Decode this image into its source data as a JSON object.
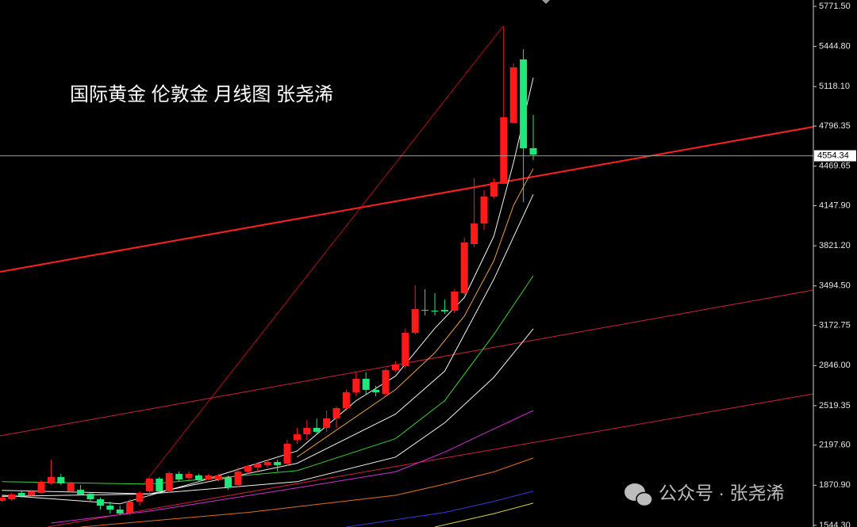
{
  "chart_data": {
    "type": "candlestick",
    "title": "国际黄金 伦敦金  月线图 张尧浠",
    "watermark": "公众号 · 张尧浠",
    "up_color": "#ff1a1a",
    "down_color": "#1ee87a",
    "ylim": [
      1531,
      5823
    ],
    "yticks": [
      {
        "value": 1544.3,
        "label": "1544.30"
      },
      {
        "value": 1870.9,
        "label": "1870.90"
      },
      {
        "value": 2197.6,
        "label": "2197.60"
      },
      {
        "value": 2519.35,
        "label": "2519.35"
      },
      {
        "value": 2846.0,
        "label": "2846.00"
      },
      {
        "value": 3172.75,
        "label": "3172.75"
      },
      {
        "value": 3494.5,
        "label": "3494.50"
      },
      {
        "value": 3821.2,
        "label": "3821.20"
      },
      {
        "value": 4147.9,
        "label": "4147.90"
      },
      {
        "value": 4469.65,
        "label": "4469.65"
      },
      {
        "value": 4796.35,
        "label": "4796.35"
      },
      {
        "value": 5118.1,
        "label": "5118.10"
      },
      {
        "value": 5444.8,
        "label": "5444.80"
      },
      {
        "value": 5771.5,
        "label": "5771.50"
      }
    ],
    "last_price": 4554.34,
    "ohlc": {
      "open": [
        1744,
        1757,
        1809,
        1789,
        1809,
        1886,
        1938,
        1822,
        1834,
        1802,
        1757,
        1705,
        1673,
        1641,
        1738,
        1822,
        1925,
        1822,
        1964,
        1931,
        1951,
        1918,
        1918,
        1931,
        1873,
        1983,
        2015,
        2035,
        2060,
        2047,
        2241,
        2286,
        2338,
        2338,
        2415,
        2499,
        2628,
        2738,
        2648,
        2615,
        2809,
        2841,
        3112,
        3299,
        3293,
        3299,
        3293,
        3435,
        3835,
        4003,
        4222,
        4326,
        4823,
        5339,
        4616
      ],
      "high": [
        1783,
        1809,
        1822,
        1834,
        1912,
        2080,
        1964,
        1899,
        1873,
        1809,
        1770,
        1738,
        1705,
        1757,
        1822,
        1931,
        1938,
        1983,
        1983,
        1983,
        1964,
        1964,
        1964,
        1951,
        2015,
        2035,
        2060,
        2080,
        2080,
        2241,
        2338,
        2402,
        2415,
        2480,
        2512,
        2648,
        2790,
        2790,
        2680,
        2822,
        2880,
        3145,
        3500,
        3467,
        3435,
        3383,
        3467,
        3887,
        4371,
        4274,
        4371,
        5610,
        5307,
        5423,
        4887
      ],
      "low": [
        1738,
        1744,
        1770,
        1783,
        1802,
        1873,
        1873,
        1809,
        1789,
        1744,
        1673,
        1641,
        1628,
        1628,
        1705,
        1809,
        1809,
        1809,
        1899,
        1912,
        1899,
        1912,
        1899,
        1834,
        1854,
        1964,
        1983,
        2015,
        1983,
        2028,
        2209,
        2241,
        2286,
        2306,
        2338,
        2480,
        2596,
        2615,
        2596,
        2596,
        2790,
        2822,
        3099,
        3254,
        3254,
        3267,
        3274,
        3422,
        3809,
        3951,
        4209,
        4326,
        4823,
        4177,
        4519
      ],
      "close": [
        1770,
        1796,
        1783,
        1822,
        1899,
        1938,
        1886,
        1886,
        1796,
        1757,
        1705,
        1673,
        1641,
        1738,
        1809,
        1925,
        1822,
        1970,
        1918,
        1964,
        1912,
        1951,
        1951,
        1854,
        1983,
        2028,
        2047,
        2060,
        2035,
        2209,
        2286,
        2338,
        2306,
        2415,
        2499,
        2628,
        2738,
        2648,
        2628,
        2809,
        2854,
        3112,
        3306,
        3293,
        3287,
        3287,
        3448,
        3848,
        4003,
        4222,
        4339,
        4868,
        5274,
        4616,
        4564
      ]
    },
    "overlays": [
      {
        "color": "#f2f2f2",
        "x": [
          0,
          12,
          20,
          30,
          36,
          40,
          44,
          47,
          50,
          52,
          54
        ],
        "values": [
          1790,
          1720,
          1900,
          2150,
          2560,
          2760,
          3150,
          3400,
          3900,
          4500,
          5190
        ]
      },
      {
        "color": "#e8a040",
        "x": [
          30,
          40,
          44,
          47,
          50,
          52,
          54
        ],
        "values": [
          2100,
          2650,
          2950,
          3250,
          3700,
          4150,
          4450
        ]
      },
      {
        "color": "#f2f2f2",
        "x": [
          0,
          15,
          30,
          40,
          45,
          50,
          54
        ],
        "values": [
          1830,
          1800,
          2050,
          2450,
          2800,
          3550,
          4240
        ]
      },
      {
        "color": "#3ad13a",
        "x": [
          0,
          15,
          30,
          40,
          45,
          50,
          54
        ],
        "values": [
          1900,
          1880,
          1990,
          2250,
          2560,
          3100,
          3577
        ]
      },
      {
        "color": "#f2f2f2",
        "x": [
          0,
          15,
          30,
          40,
          45,
          50,
          54
        ],
        "values": [
          1780,
          1800,
          1900,
          2100,
          2380,
          2750,
          3145
        ]
      },
      {
        "color": "#d030d0",
        "x": [
          5,
          15,
          30,
          40,
          45,
          50,
          54
        ],
        "values": [
          1563,
          1660,
          1850,
          1980,
          2140,
          2330,
          2480
        ]
      },
      {
        "color": "#e07020",
        "x": [
          8,
          25,
          40,
          45,
          50,
          54
        ],
        "values": [
          1531,
          1650,
          1789,
          1880,
          1980,
          2093
        ]
      },
      {
        "color": "#3838e0",
        "x": [
          35,
          45,
          50,
          54
        ],
        "values": [
          1531,
          1650,
          1740,
          1822
        ]
      },
      {
        "color": "#e0d040",
        "x": [
          44,
          50,
          54
        ],
        "values": [
          1531,
          1640,
          1725
        ]
      }
    ]
  }
}
